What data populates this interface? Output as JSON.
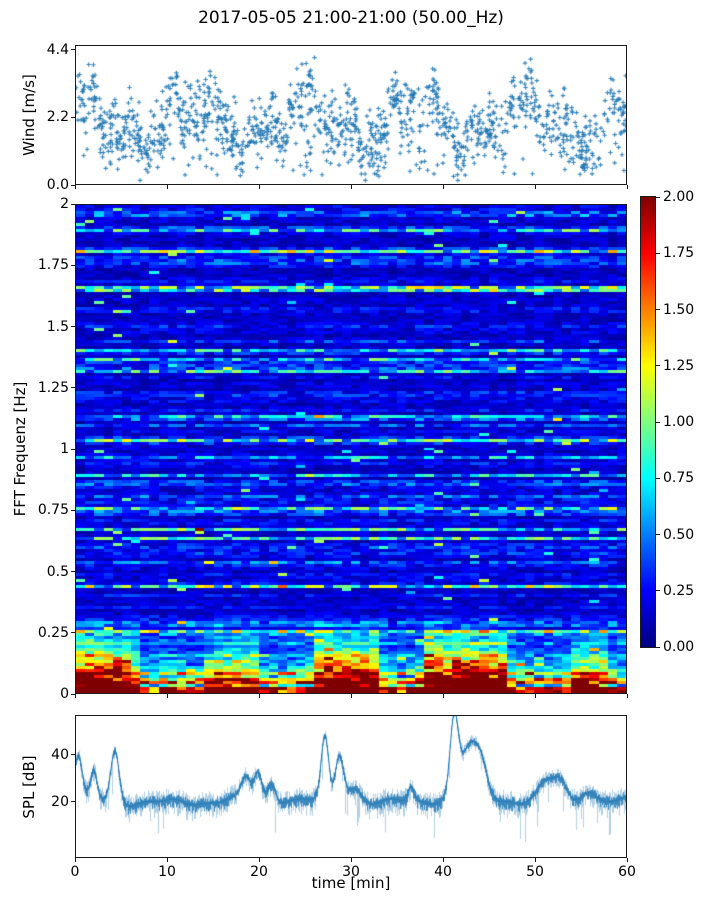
{
  "title": "2017-05-05 21:00-21:00 (50.00_Hz)",
  "figure_bg": "#ffffff",
  "series_color": "#1f77b4",
  "chart_data": [
    {
      "type": "scatter",
      "name": "wind-speed",
      "ylabel": "Wind [m/s]",
      "xlim": [
        0,
        60
      ],
      "ylim": [
        0,
        4.56
      ],
      "ytick_labels": [
        "0.0",
        "2.2",
        "4.4"
      ],
      "ytick_values": [
        0.0,
        2.2,
        4.4
      ],
      "xtick_values": [
        0,
        10,
        20,
        30,
        40,
        50,
        60
      ],
      "marker": "+",
      "color": "#1f77b4",
      "n_points": 1400,
      "seed": 7,
      "mean_profile": {
        "base": 2.05,
        "sines": [
          [
            0.6,
            0.52,
            1.1
          ],
          [
            0.42,
            1.31,
            0.4
          ],
          [
            0.28,
            2.9,
            2.2
          ]
        ]
      },
      "spread": 0.52,
      "low_outlier_frac": 0.1
    },
    {
      "type": "heatmap",
      "name": "fft-spectrogram",
      "ylabel": "FFT Frequenz [Hz]",
      "xlim": [
        0,
        60
      ],
      "ylim": [
        0,
        2
      ],
      "ytick_labels": [
        "2",
        "1.75",
        "1.5",
        "1.25",
        "1",
        "0.75",
        "0.5",
        "0.25",
        "0"
      ],
      "ytick_values": [
        2,
        1.75,
        1.5,
        1.25,
        1,
        0.75,
        0.5,
        0.25,
        0
      ],
      "xtick_values": [
        0,
        10,
        20,
        30,
        40,
        50,
        60
      ],
      "colormap": "jet",
      "clim": [
        0,
        2
      ],
      "grid": {
        "cols": 60,
        "rows": 163
      },
      "seed": 11,
      "low_freq_cutoff": 0.32,
      "hot_windows": [
        [
          0,
          6.5,
          1.0
        ],
        [
          14.5,
          20,
          0.55
        ],
        [
          26,
          33,
          1.0
        ],
        [
          38,
          47,
          1.2
        ],
        [
          54,
          58,
          0.6
        ]
      ],
      "colorbar": {
        "tick_labels": [
          "2.00",
          "1.75",
          "1.50",
          "1.25",
          "1.00",
          "0.75",
          "0.50",
          "0.25",
          "0.00"
        ],
        "tick_values": [
          2,
          1.75,
          1.5,
          1.25,
          1,
          0.75,
          0.5,
          0.25,
          0
        ]
      }
    },
    {
      "type": "line",
      "name": "spl",
      "ylabel": "SPL [dB]",
      "xlabel": "time [min]",
      "xlim": [
        0,
        60
      ],
      "ylim": [
        -4,
        57
      ],
      "ytick_labels": [
        "20",
        "40"
      ],
      "ytick_values": [
        20,
        40
      ],
      "xtick_labels": [
        "0",
        "10",
        "20",
        "30",
        "40",
        "50",
        "60"
      ],
      "xtick_values": [
        0,
        10,
        20,
        30,
        40,
        50,
        60
      ],
      "color": "#1f77b4",
      "seed": 3,
      "baseline": 20.3,
      "noise_amp": 4.3,
      "peaks": [
        [
          0.2,
          18,
          0.4
        ],
        [
          1.9,
          12,
          0.35
        ],
        [
          4.2,
          22,
          0.45
        ],
        [
          18.5,
          9,
          0.5
        ],
        [
          19.8,
          11,
          0.4
        ],
        [
          21.3,
          7,
          0.4
        ],
        [
          27.1,
          27,
          0.4
        ],
        [
          28.7,
          20,
          0.45
        ],
        [
          30.3,
          7,
          0.8
        ],
        [
          36.5,
          6,
          0.3
        ],
        [
          41.2,
          33,
          0.45
        ],
        [
          42.8,
          21,
          0.9
        ],
        [
          44.2,
          12,
          0.7
        ],
        [
          51.3,
          8,
          0.9
        ],
        [
          52.8,
          8,
          0.7
        ],
        [
          55.8,
          6,
          0.8
        ]
      ]
    }
  ]
}
